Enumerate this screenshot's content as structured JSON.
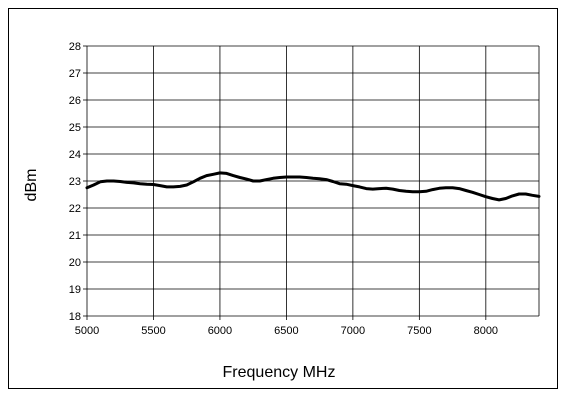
{
  "chart_data": {
    "type": "line",
    "title": "",
    "xlabel": "Frequency MHz",
    "ylabel": "dBm",
    "xlim": [
      5000,
      8400
    ],
    "ylim": [
      18,
      28
    ],
    "x_ticks": [
      5000,
      5500,
      6000,
      6500,
      7000,
      7500,
      8000
    ],
    "y_ticks": [
      18,
      19,
      20,
      21,
      22,
      23,
      24,
      25,
      26,
      27,
      28
    ],
    "grid": true,
    "legend": "none",
    "colors": {
      "line": "#000000",
      "grid": "#000000",
      "background": "#ffffff"
    },
    "series": [
      {
        "x": [
          5000,
          5050,
          5100,
          5150,
          5200,
          5250,
          5300,
          5350,
          5400,
          5450,
          5500,
          5550,
          5600,
          5650,
          5700,
          5750,
          5800,
          5850,
          5900,
          5950,
          6000,
          6050,
          6100,
          6150,
          6200,
          6250,
          6300,
          6350,
          6400,
          6450,
          6500,
          6550,
          6600,
          6650,
          6700,
          6750,
          6800,
          6850,
          6900,
          6950,
          7000,
          7050,
          7100,
          7150,
          7200,
          7250,
          7300,
          7350,
          7400,
          7450,
          7500,
          7550,
          7600,
          7650,
          7700,
          7750,
          7800,
          7850,
          7900,
          7950,
          8000,
          8050,
          8100,
          8150,
          8200,
          8250,
          8300,
          8350,
          8400
        ],
        "y": [
          22.75,
          22.85,
          22.97,
          23.0,
          23.0,
          22.98,
          22.95,
          22.93,
          22.9,
          22.88,
          22.87,
          22.83,
          22.78,
          22.78,
          22.8,
          22.85,
          22.97,
          23.1,
          23.2,
          23.25,
          23.3,
          23.28,
          23.2,
          23.13,
          23.07,
          23.0,
          23.0,
          23.05,
          23.1,
          23.13,
          23.15,
          23.15,
          23.15,
          23.13,
          23.1,
          23.08,
          23.05,
          22.98,
          22.9,
          22.88,
          22.83,
          22.78,
          22.72,
          22.7,
          22.72,
          22.73,
          22.7,
          22.65,
          22.62,
          22.6,
          22.6,
          22.62,
          22.68,
          22.73,
          22.75,
          22.75,
          22.72,
          22.65,
          22.58,
          22.5,
          22.42,
          22.35,
          22.3,
          22.35,
          22.45,
          22.52,
          22.52,
          22.47,
          22.43
        ]
      }
    ]
  }
}
